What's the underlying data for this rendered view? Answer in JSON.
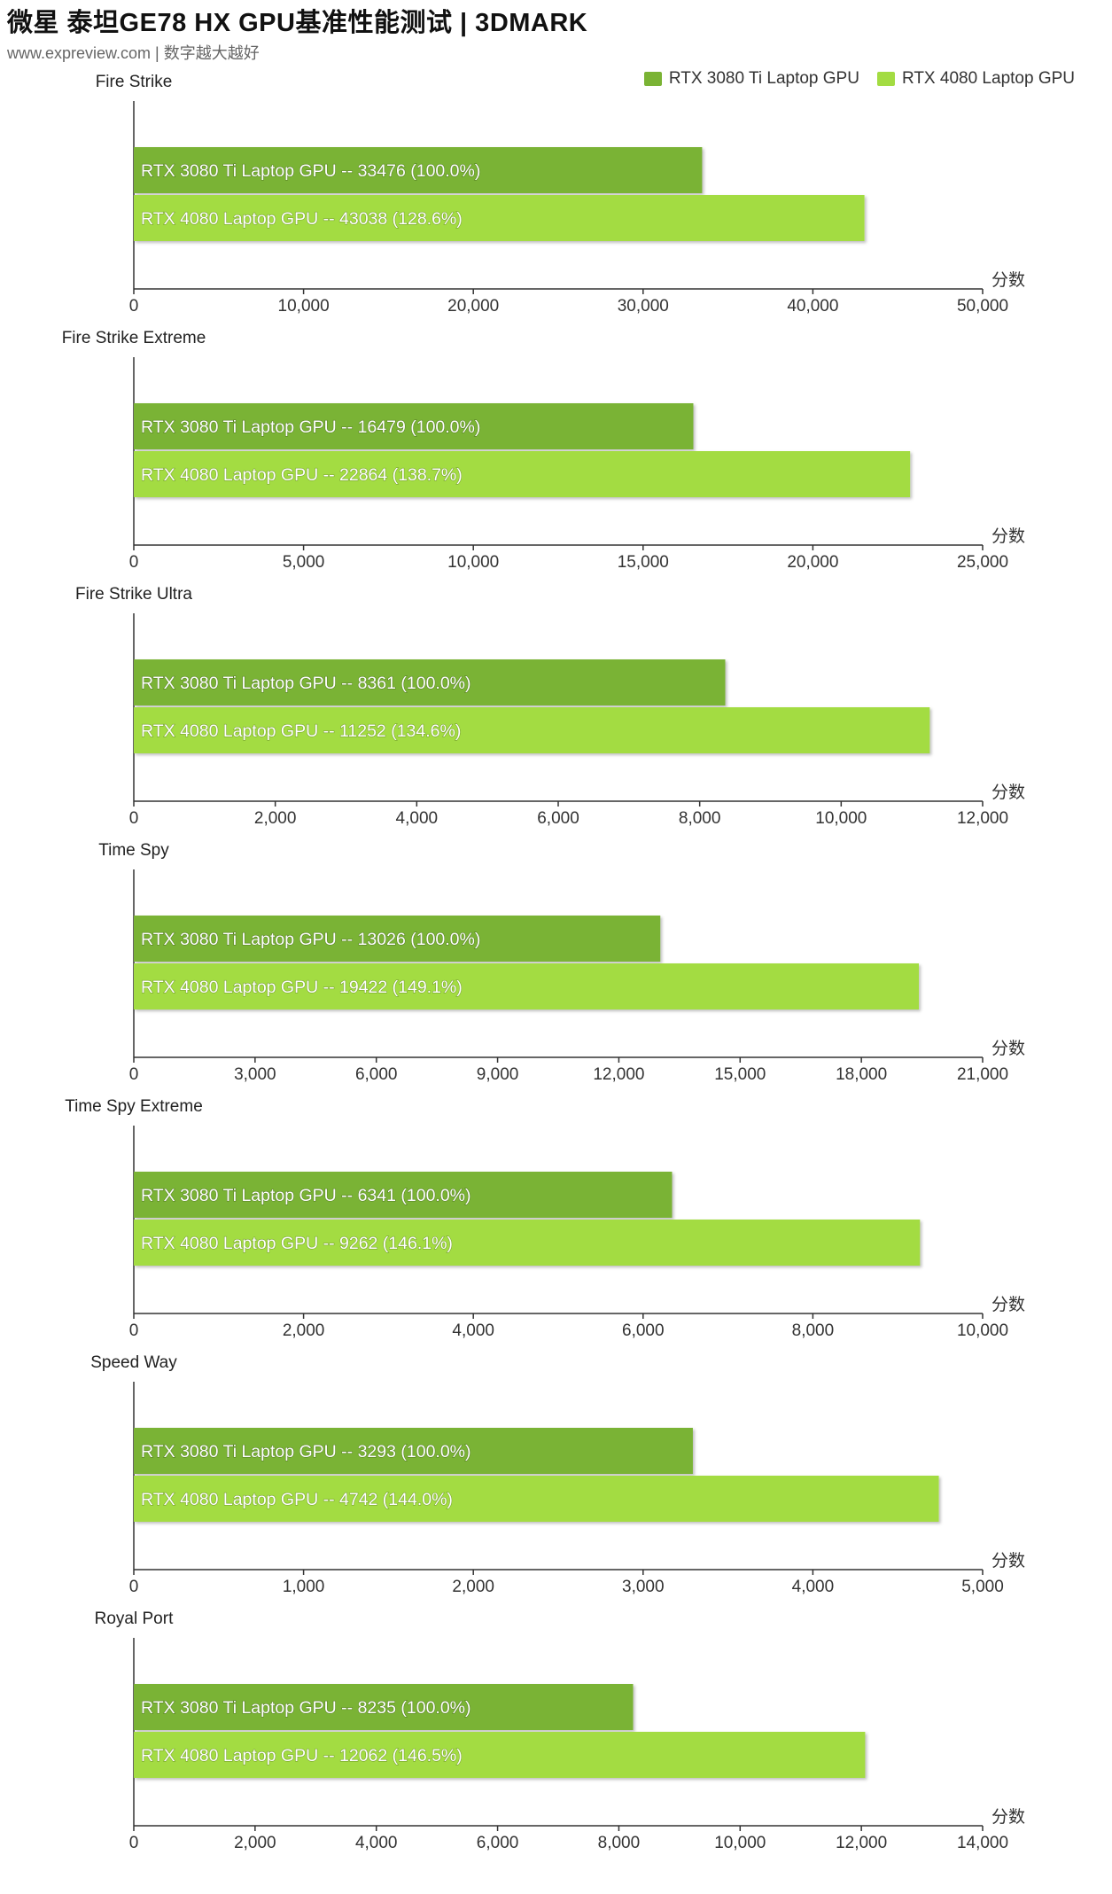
{
  "header": {
    "title": "微星 泰坦GE78 HX GPU基准性能测试 | 3DMARK",
    "subtitle": "www.expreview.com | 数字越大越好"
  },
  "legend": [
    {
      "name": "RTX 3080 Ti Laptop GPU",
      "color": "#7ab334"
    },
    {
      "name": "RTX 4080 Laptop GPU",
      "color": "#a3dc42"
    }
  ],
  "chart_data": [
    {
      "type": "bar",
      "title": "Fire Strike",
      "xlabel": "分数",
      "xlim": [
        0,
        50000
      ],
      "ticks": [
        "0",
        "10,000",
        "20,000",
        "30,000",
        "40,000",
        "50,000"
      ],
      "bars": [
        {
          "label": "RTX 3080 Ti Laptop GPU  --  33476 (100.0%)",
          "value": 33476
        },
        {
          "label": "RTX 4080 Laptop GPU  --  43038 (128.6%)",
          "value": 43038
        }
      ]
    },
    {
      "type": "bar",
      "title": "Fire Strike Extreme",
      "xlabel": "分数",
      "xlim": [
        0,
        25000
      ],
      "ticks": [
        "0",
        "5,000",
        "10,000",
        "15,000",
        "20,000",
        "25,000"
      ],
      "bars": [
        {
          "label": "RTX 3080 Ti Laptop GPU  --  16479 (100.0%)",
          "value": 16479
        },
        {
          "label": "RTX 4080 Laptop GPU  --  22864 (138.7%)",
          "value": 22864
        }
      ]
    },
    {
      "type": "bar",
      "title": "Fire Strike Ultra",
      "xlabel": "分数",
      "xlim": [
        0,
        12000
      ],
      "ticks": [
        "0",
        "2,000",
        "4,000",
        "6,000",
        "8,000",
        "10,000",
        "12,000"
      ],
      "bars": [
        {
          "label": "RTX 3080 Ti Laptop GPU  --  8361 (100.0%)",
          "value": 8361
        },
        {
          "label": "RTX 4080 Laptop GPU  --  11252 (134.6%)",
          "value": 11252
        }
      ]
    },
    {
      "type": "bar",
      "title": "Time Spy",
      "xlabel": "分数",
      "xlim": [
        0,
        21000
      ],
      "ticks": [
        "0",
        "3,000",
        "6,000",
        "9,000",
        "12,000",
        "15,000",
        "18,000",
        "21,000"
      ],
      "bars": [
        {
          "label": "RTX 3080 Ti Laptop GPU  --  13026 (100.0%)",
          "value": 13026
        },
        {
          "label": "RTX 4080 Laptop GPU  --  19422 (149.1%)",
          "value": 19422
        }
      ]
    },
    {
      "type": "bar",
      "title": "Time Spy Extreme",
      "xlabel": "分数",
      "xlim": [
        0,
        10000
      ],
      "ticks": [
        "0",
        "2,000",
        "4,000",
        "6,000",
        "8,000",
        "10,000"
      ],
      "bars": [
        {
          "label": "RTX 3080 Ti Laptop GPU  --  6341 (100.0%)",
          "value": 6341
        },
        {
          "label": "RTX 4080 Laptop GPU  --  9262 (146.1%)",
          "value": 9262
        }
      ]
    },
    {
      "type": "bar",
      "title": "Speed Way",
      "xlabel": "分数",
      "xlim": [
        0,
        5000
      ],
      "ticks": [
        "0",
        "1,000",
        "2,000",
        "3,000",
        "4,000",
        "5,000"
      ],
      "bars": [
        {
          "label": "RTX 3080 Ti Laptop GPU  --  3293 (100.0%)",
          "value": 3293
        },
        {
          "label": "RTX 4080 Laptop GPU  --  4742 (144.0%)",
          "value": 4742
        }
      ]
    },
    {
      "type": "bar",
      "title": "Royal Port",
      "xlabel": "分数",
      "xlim": [
        0,
        14000
      ],
      "ticks": [
        "0",
        "2,000",
        "4,000",
        "6,000",
        "8,000",
        "10,000",
        "12,000",
        "14,000"
      ],
      "bars": [
        {
          "label": "RTX 3080 Ti Laptop GPU  --  8235 (100.0%)",
          "value": 8235
        },
        {
          "label": "RTX 4080 Laptop GPU  --  12062 (146.5%)",
          "value": 12062
        }
      ]
    }
  ]
}
